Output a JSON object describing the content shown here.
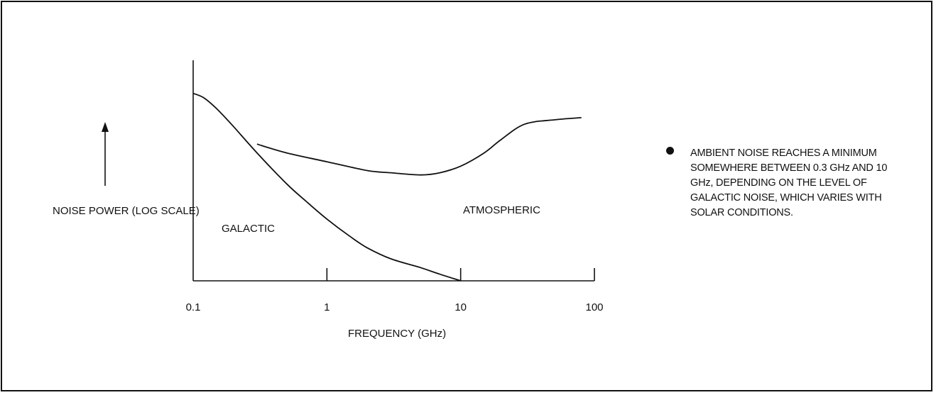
{
  "chart_data": {
    "type": "line",
    "x_scale": "log",
    "xlim": [
      0.1,
      100
    ],
    "xticks": [
      "0.1",
      "1",
      "10",
      "100"
    ],
    "xlabel": "FREQUENCY (GHz)",
    "ylabel": "NOISE POWER (LOG SCALE)",
    "y_values_shown": false,
    "grid": false,
    "series": [
      {
        "name": "GALACTIC",
        "x": [
          0.1,
          0.12,
          0.15,
          0.2,
          0.3,
          0.5,
          0.7,
          1,
          1.5,
          2,
          3,
          5,
          7,
          10
        ],
        "y": [
          0.85,
          0.83,
          0.78,
          0.7,
          0.58,
          0.44,
          0.36,
          0.28,
          0.2,
          0.15,
          0.1,
          0.06,
          0.03,
          0.0
        ]
      },
      {
        "name": "ATMOSPHERIC",
        "x": [
          0.3,
          0.5,
          1,
          2,
          3,
          5,
          7,
          10,
          15,
          20,
          30,
          50,
          80
        ],
        "y": [
          0.62,
          0.58,
          0.54,
          0.5,
          0.49,
          0.48,
          0.49,
          0.52,
          0.58,
          0.64,
          0.71,
          0.73,
          0.74
        ]
      }
    ]
  },
  "note": {
    "text": "AMBIENT NOISE REACHES A MINIMUM SOMEWHERE BETWEEN 0.3 GHz AND 10 GHz, DEPENDING ON THE LEVEL OF GALACTIC NOISE, WHICH VARIES WITH SOLAR CONDITIONS."
  }
}
